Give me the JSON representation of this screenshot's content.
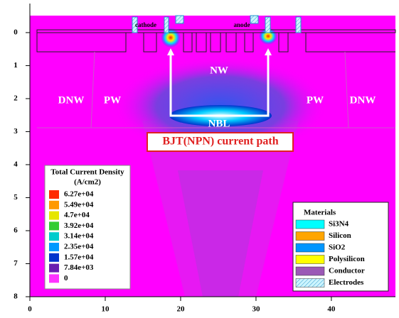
{
  "chart_data": {
    "type": "contour",
    "xlim": [
      0,
      48.5
    ],
    "ylim": [
      -0.88,
      8
    ],
    "y_direction": "down",
    "xticks": [
      0,
      10,
      20,
      30,
      40
    ],
    "yticks": [
      0,
      1,
      2,
      3,
      4,
      5,
      6,
      7,
      8
    ],
    "region_labels": [
      "cathode",
      "anode",
      "NW",
      "DNW",
      "PW",
      "PW",
      "DNW",
      "NBL"
    ],
    "annotation": "BJT(NPN) current path",
    "legend": {
      "title": "Total Current Density",
      "unit": "(A/cm2)",
      "levels": [
        {
          "value": 62700,
          "label": "6.27e+04"
        },
        {
          "value": 54900,
          "label": "5.49e+04"
        },
        {
          "value": 47000,
          "label": "4.7e+04"
        },
        {
          "value": 39200,
          "label": "3.92e+04"
        },
        {
          "value": 31400,
          "label": "3.14e+04"
        },
        {
          "value": 23500,
          "label": "2.35e+04"
        },
        {
          "value": 15700,
          "label": "1.57e+04"
        },
        {
          "value": 7840,
          "label": "7.84e+03"
        },
        0
      ],
      "colors": [
        "#ff2a00",
        "#ff9900",
        "#e6e600",
        "#33cc33",
        "#00cccc",
        "#0099ff",
        "#0033cc",
        "#6a1fb0",
        "#ff33ff"
      ]
    },
    "materials": {
      "title": "Materials",
      "items": [
        {
          "name": "Si3N4",
          "color": "#00ffff"
        },
        {
          "name": "Silicon",
          "color": "#ffa500"
        },
        {
          "name": "SiO2",
          "color": "#0096ff"
        },
        {
          "name": "Polysilicon",
          "color": "#ffff00"
        },
        {
          "name": "Conductor",
          "color": "#9b59b6"
        },
        {
          "name": "Electrodes",
          "color": "#bfefff"
        }
      ]
    }
  }
}
